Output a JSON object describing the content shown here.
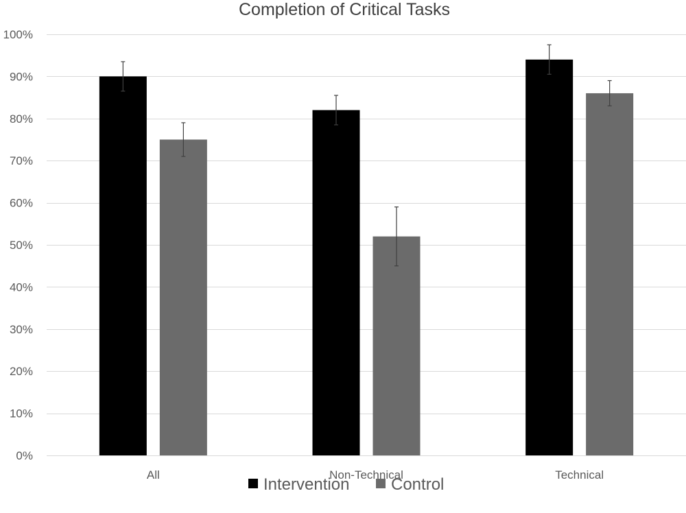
{
  "chart_data": {
    "type": "bar",
    "title": "Completion of Critical Tasks",
    "xlabel": "",
    "ylabel": "",
    "categories": [
      "All",
      "Non-Technical",
      "Technical"
    ],
    "series": [
      {
        "name": "Intervention",
        "color": "#000000",
        "values": [
          90,
          82,
          94
        ],
        "error_low": [
          86.5,
          78.5,
          90.5
        ],
        "error_high": [
          93.5,
          85.5,
          97.5
        ]
      },
      {
        "name": "Control",
        "color": "#6b6b6b",
        "values": [
          75,
          52,
          86
        ],
        "error_low": [
          71,
          45,
          83
        ],
        "error_high": [
          79,
          59,
          89
        ]
      }
    ],
    "ylim": [
      0,
      100
    ],
    "yticks": [
      0,
      10,
      20,
      30,
      40,
      50,
      60,
      70,
      80,
      90,
      100
    ],
    "ytick_labels": [
      "0%",
      "10%",
      "20%",
      "30%",
      "40%",
      "50%",
      "60%",
      "70%",
      "80%",
      "90%",
      "100%"
    ],
    "grid": true,
    "legend_position": "bottom-center",
    "colors": {
      "gridline": "#d9d9d9",
      "axis_text": "#595959",
      "error_bar": "#404040"
    }
  }
}
